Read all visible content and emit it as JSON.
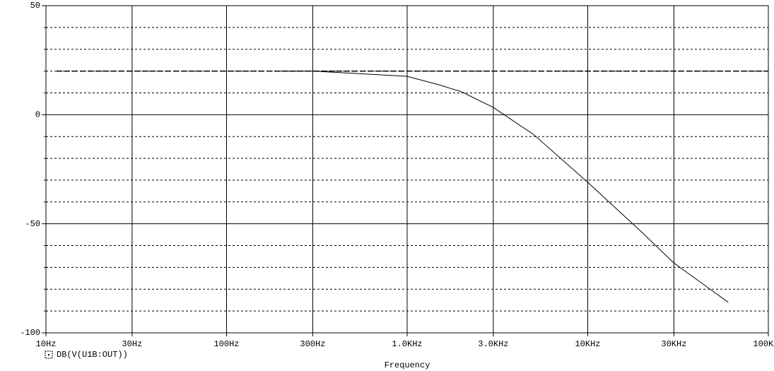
{
  "chart_data": {
    "type": "line",
    "log_x": true,
    "xlabel": "Frequency",
    "x": [
      200,
      300,
      500,
      1000,
      1500,
      2000,
      3000,
      5000,
      10000,
      20000,
      30000,
      60000
    ],
    "series": [
      {
        "name": "DB(V(U1B:OUT))",
        "color": "#000000",
        "values": [
          20,
          20,
          19,
          17.6,
          13.7,
          10.5,
          3.3,
          -9,
          -31,
          -54,
          -68,
          -86
        ]
      }
    ],
    "xlim": [
      10,
      100000
    ],
    "xticks": [
      {
        "value": 10,
        "label": "10Hz"
      },
      {
        "value": 30,
        "label": "30Hz"
      },
      {
        "value": 100,
        "label": "100Hz"
      },
      {
        "value": 300,
        "label": "300Hz"
      },
      {
        "value": 1000,
        "label": "1.0KHz"
      },
      {
        "value": 3000,
        "label": "3.0KHz"
      },
      {
        "value": 10000,
        "label": "10KHz"
      },
      {
        "value": 30000,
        "label": "30KHz"
      },
      {
        "value": 100000,
        "label": "100KHz"
      }
    ],
    "ylim": [
      -100,
      50
    ],
    "yticks": [
      50,
      0,
      -50,
      -100
    ],
    "y_minor_ticks": [
      40,
      30,
      20,
      10,
      -10,
      -20,
      -30,
      -40,
      -60,
      -70,
      -80,
      -90
    ],
    "hlines": [
      20
    ],
    "grid": true
  }
}
